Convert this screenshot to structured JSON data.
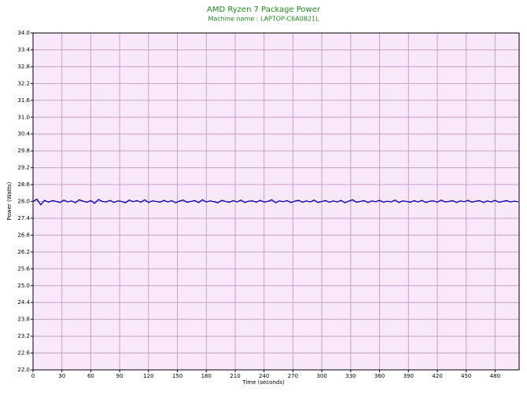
{
  "chart_data": {
    "type": "line",
    "title": "AMD Ryzen 7 Package Power",
    "subtitle": "Machine name : LAPTOP-C6A0821L",
    "x_label": "Time (seconds)",
    "y_label": "Power (Watts)",
    "xlim": [
      0,
      505
    ],
    "ylim": [
      22.0,
      34.0
    ],
    "xticks": [
      0,
      30,
      60,
      90,
      120,
      150,
      180,
      210,
      240,
      270,
      300,
      330,
      360,
      390,
      420,
      450,
      480
    ],
    "yticks": [
      {
        "value": 22,
        "label": "22.0"
      },
      22.6,
      23.2,
      23.8,
      24.4,
      {
        "value": 25,
        "label": "25.0"
      },
      25.6,
      26.2,
      26.8,
      27.4,
      {
        "value": 28,
        "label": "28.0"
      },
      28.6,
      29.2,
      29.8,
      30.4,
      {
        "value": 31,
        "label": "31.0"
      },
      31.6,
      32.2,
      32.8,
      33.4,
      {
        "value": 34,
        "label": "34.0"
      }
    ],
    "grid": true,
    "x": [
      0,
      4,
      8,
      12,
      16,
      20,
      24,
      28,
      32,
      36,
      40,
      44,
      48,
      52,
      56,
      60,
      64,
      68,
      72,
      76,
      80,
      84,
      88,
      92,
      96,
      100,
      104,
      108,
      112,
      116,
      120,
      124,
      128,
      132,
      136,
      140,
      144,
      148,
      152,
      156,
      160,
      164,
      168,
      172,
      176,
      180,
      184,
      188,
      192,
      196,
      200,
      204,
      208,
      212,
      216,
      220,
      224,
      228,
      232,
      236,
      240,
      244,
      248,
      252,
      256,
      260,
      264,
      268,
      272,
      276,
      280,
      284,
      288,
      292,
      296,
      300,
      304,
      308,
      312,
      316,
      320,
      324,
      328,
      332,
      336,
      340,
      344,
      348,
      352,
      356,
      360,
      364,
      368,
      372,
      376,
      380,
      384,
      388,
      392,
      396,
      400,
      404,
      408,
      412,
      416,
      420,
      424,
      428,
      432,
      436,
      440,
      444,
      448,
      452,
      456,
      460,
      464,
      468,
      472,
      476,
      480,
      484,
      488,
      492,
      496,
      500,
      504
    ],
    "series": [
      {
        "name": "Package Power",
        "color": "#0000c8",
        "values": [
          28.0,
          28.08,
          27.88,
          28.04,
          27.97,
          28.03,
          28.0,
          27.96,
          28.05,
          27.98,
          28.02,
          27.95,
          28.06,
          28.01,
          27.97,
          28.03,
          27.93,
          28.07,
          28.0,
          27.98,
          28.04,
          27.96,
          28.02,
          28.0,
          27.95,
          28.05,
          27.99,
          28.03,
          27.97,
          28.06,
          27.96,
          28.02,
          28.0,
          27.97,
          28.04,
          27.98,
          28.03,
          27.95,
          28.01,
          28.05,
          27.97,
          28.0,
          28.03,
          27.96,
          28.06,
          27.98,
          28.02,
          27.99,
          27.95,
          28.04,
          28.0,
          27.97,
          28.03,
          27.98,
          28.05,
          27.96,
          28.01,
          28.02,
          27.97,
          28.04,
          27.98,
          28.0,
          28.06,
          27.95,
          28.02,
          27.99,
          28.03,
          27.96,
          28.01,
          28.04,
          27.97,
          28.02,
          27.98,
          28.05,
          27.96,
          28.0,
          28.03,
          27.97,
          28.02,
          27.98,
          28.04,
          27.95,
          28.01,
          28.06,
          27.97,
          28.0,
          28.03,
          27.96,
          28.02,
          27.99,
          28.04,
          27.97,
          28.01,
          27.98,
          28.05,
          27.96,
          28.02,
          28.0,
          27.97,
          28.03,
          27.98,
          28.04,
          27.96,
          28.01,
          28.02,
          27.97,
          28.05,
          27.98,
          28.0,
          28.03,
          27.96,
          28.02,
          27.99,
          28.04,
          27.97,
          28.01,
          28.03,
          27.96,
          28.02,
          27.98,
          28.04,
          27.97,
          28.0,
          28.03,
          27.98,
          28.01,
          27.99
        ]
      }
    ]
  }
}
